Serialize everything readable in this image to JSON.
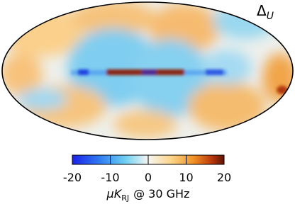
{
  "map": {
    "label": {
      "symbol": "Δ",
      "subscript": "U"
    },
    "colorbar": {
      "lim": [
        -20,
        20
      ],
      "ticks": [
        -20,
        -10,
        0,
        10,
        20
      ],
      "label": {
        "prefix": "μK",
        "subscript": "RJ",
        "suffix": "@ 30 GHz"
      }
    }
  }
}
